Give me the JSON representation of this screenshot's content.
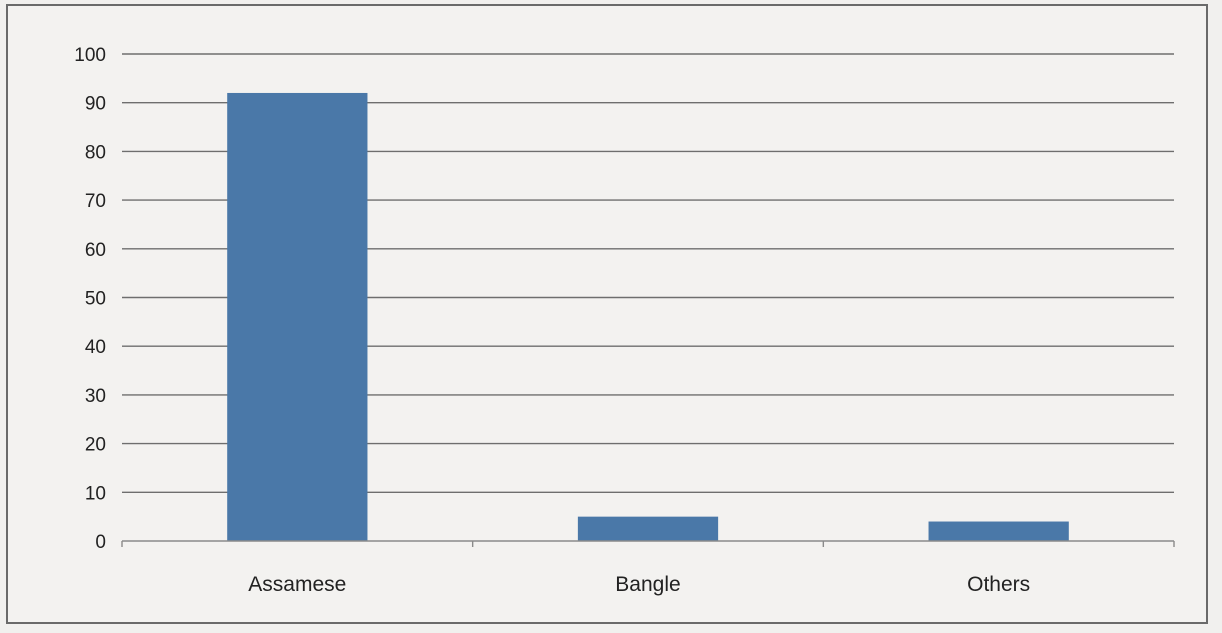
{
  "chart_data": {
    "type": "bar",
    "title": "",
    "xlabel": "",
    "ylabel": "",
    "categories": [
      "Assamese",
      "Bangle",
      "Others"
    ],
    "values": [
      92,
      5,
      4
    ],
    "ylim": [
      0,
      100
    ],
    "yticks": [
      "0",
      "10",
      "20",
      "30",
      "40",
      "50",
      "60",
      "70",
      "80",
      "90",
      "100"
    ],
    "grid": true,
    "legend": "none",
    "bar_color": "#4a78a8"
  }
}
